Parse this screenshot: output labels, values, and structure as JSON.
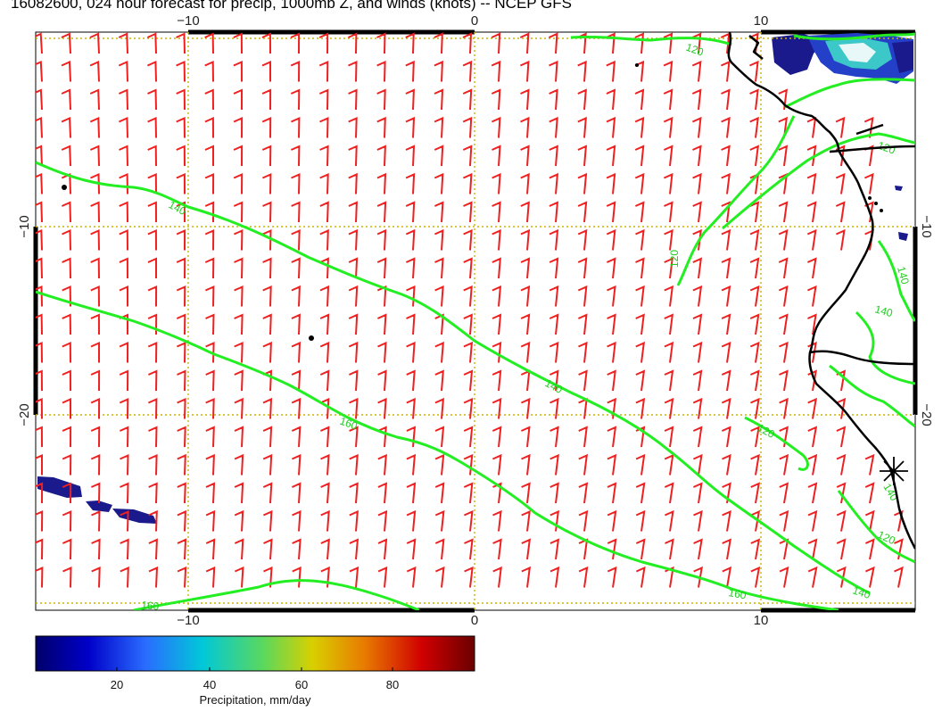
{
  "title": "16082600, 024 hour forecast for precip, 1000mb Z, and winds (knots) -- NCEP GFS",
  "axes": {
    "x_ticks": [
      "−10",
      "0",
      "10"
    ],
    "y_ticks": [
      "−10",
      "−20"
    ]
  },
  "contours": {
    "color": "#22ee22",
    "labels": [
      "120",
      "140",
      "140",
      "160",
      "140",
      "120",
      "120",
      "140",
      "140",
      "160",
      "120",
      "120",
      "140",
      "160"
    ]
  },
  "colorbar": {
    "ticks": [
      "20",
      "40",
      "60",
      "80"
    ],
    "label": "Precipitation, mm/day",
    "stops": [
      "#00006a",
      "#0000c8",
      "#2a6cff",
      "#00c8d8",
      "#5cd85c",
      "#d8d000",
      "#e87a00",
      "#d00000",
      "#6a0000"
    ]
  },
  "colors": {
    "wind_barbs": "#ee2020",
    "grid": "#c8b400",
    "coastline": "#000000"
  }
}
